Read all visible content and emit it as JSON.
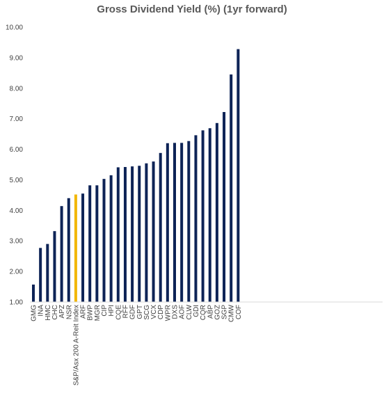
{
  "chart_data": {
    "type": "bar",
    "title": "Gross Dividend Yield (%) (1yr forward)",
    "xlabel": "",
    "ylabel": "",
    "ylim": [
      1.0,
      10.0
    ],
    "yticks": [
      "1.00",
      "2.00",
      "3.00",
      "4.00",
      "5.00",
      "6.00",
      "7.00",
      "8.00",
      "9.00",
      "10.00"
    ],
    "grid": false,
    "categories": [
      "GMG",
      "INA",
      "HMC",
      "CHC",
      "APZ",
      "NSR",
      "S&P/Asx 200 A-Reit Index",
      "ARF",
      "BWP",
      "MGR",
      "CIP",
      "HPI",
      "CQE",
      "RFF",
      "GDF",
      "GPT",
      "SCG",
      "VCX",
      "CDP",
      "WPR",
      "DXS",
      "AOF",
      "CLW",
      "GDI",
      "CQR",
      "ABP",
      "GOZ",
      "SGP",
      "CMW",
      "COF"
    ],
    "values": [
      1.57,
      2.77,
      2.9,
      3.32,
      4.14,
      4.4,
      4.52,
      4.55,
      4.82,
      4.82,
      5.03,
      5.15,
      5.41,
      5.42,
      5.44,
      5.46,
      5.54,
      5.6,
      5.88,
      6.2,
      6.21,
      6.21,
      6.27,
      6.46,
      6.62,
      6.69,
      6.86,
      7.22,
      8.45,
      9.28
    ],
    "highlight_category": "S&P/Asx 200 A-Reit Index",
    "colors": {
      "bar": "#0d2356",
      "highlight": "#f2b705",
      "axis": "#d9d9d9",
      "title": "#595959",
      "text": "#404040"
    }
  }
}
